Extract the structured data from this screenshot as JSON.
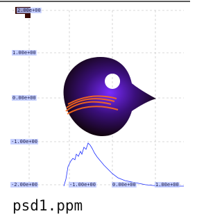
{
  "image": {
    "y_labels": [
      "2.00e+00",
      "1.00e+00",
      "0.00e+00",
      "-1.00e+00"
    ],
    "x_labels": [
      "-2.00e+00",
      "-1.00e+00",
      "0.00e+00",
      "1.00e+00"
    ]
  },
  "caption": "psd1.ppm"
}
